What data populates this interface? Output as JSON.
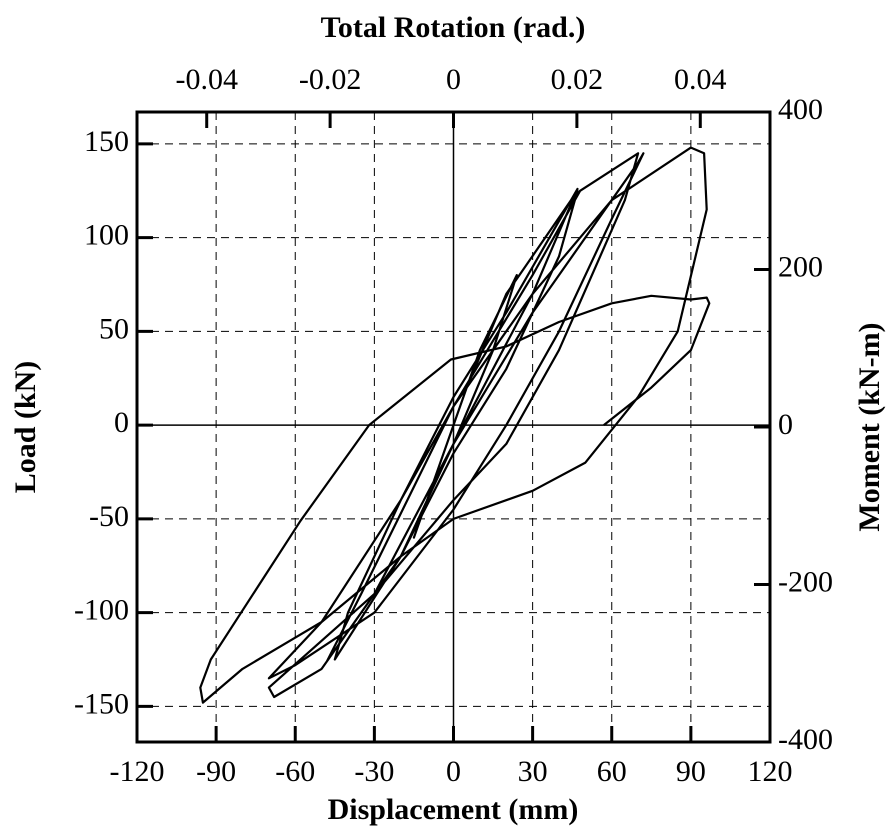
{
  "chart_data": {
    "type": "line",
    "x_label": "Displacement (mm)",
    "y_label": "Load (kN)",
    "x2_label": "Total Rotation (rad.)",
    "y2_label": "Moment (kN-m)",
    "color": "#000000",
    "grid": true,
    "xlim": [
      -120,
      120
    ],
    "xticks": [
      -120,
      -90,
      -60,
      -30,
      0,
      30,
      60,
      90,
      120
    ],
    "ylim": [
      -169,
      167
    ],
    "yticks": [
      -150,
      -100,
      -50,
      0,
      50,
      100,
      150
    ],
    "x2lim": [
      -0.0513,
      0.0513
    ],
    "x2ticks": [
      -0.04,
      -0.02,
      0,
      0.02,
      0.04
    ],
    "y2lim": [
      -400,
      400
    ],
    "y2ticks": [
      -400,
      -200,
      0,
      200,
      400
    ],
    "x": [
      0,
      10,
      24,
      15,
      0,
      -10,
      -15,
      -5,
      5,
      20,
      25,
      47,
      40,
      20,
      0,
      -20,
      -45,
      -40,
      -20,
      0,
      20,
      47,
      30,
      0,
      -30,
      -48,
      -35,
      0,
      30,
      48,
      70,
      65,
      40,
      20,
      0,
      -30,
      -70,
      -68,
      -50,
      -20,
      0,
      30,
      70,
      72,
      60,
      40,
      20,
      0,
      -30,
      -60,
      -70,
      -50,
      -20,
      0,
      30,
      60,
      90,
      95,
      96,
      85,
      70,
      50,
      30,
      0,
      -20,
      -50,
      -80,
      -95,
      -96,
      -92,
      -58,
      -32,
      -1,
      20,
      40,
      60,
      75,
      90,
      96,
      97,
      90,
      75,
      57
    ],
    "values": [
      0,
      40,
      80,
      40,
      -10,
      -40,
      -60,
      -20,
      20,
      70,
      80,
      125,
      90,
      30,
      -15,
      -70,
      -125,
      -100,
      -40,
      15,
      60,
      126,
      70,
      -10,
      -90,
      -126,
      -90,
      10,
      80,
      125,
      145,
      120,
      40,
      -10,
      -40,
      -90,
      -140,
      -145,
      -130,
      -70,
      -10,
      60,
      140,
      145,
      110,
      50,
      0,
      -45,
      -100,
      -128,
      -135,
      -105,
      -40,
      10,
      70,
      120,
      148,
      145,
      115,
      50,
      15,
      -20,
      -35,
      -50,
      -70,
      -105,
      -130,
      -148,
      -140,
      -125,
      -51,
      0,
      35,
      42,
      55,
      65,
      69,
      67,
      68,
      65,
      40,
      20,
      0
    ]
  }
}
